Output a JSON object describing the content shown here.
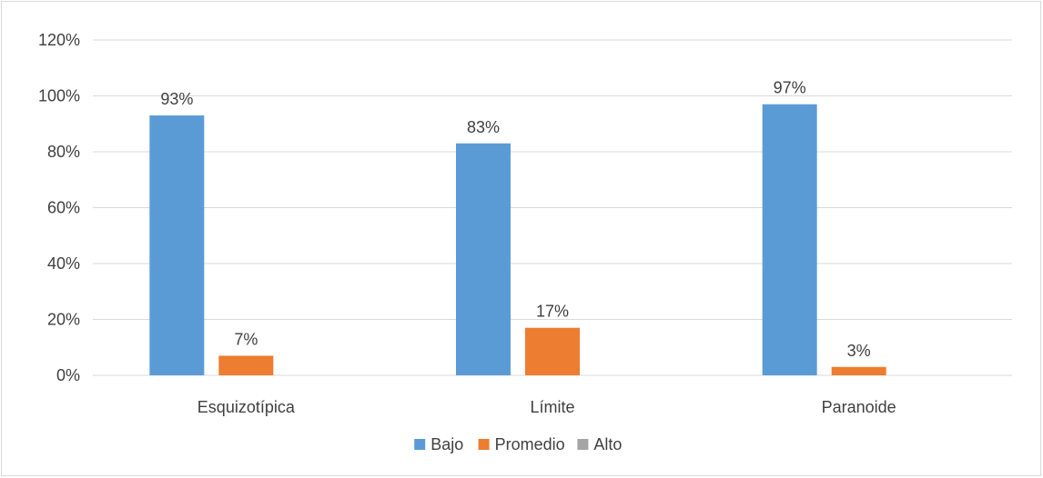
{
  "chart_data": {
    "type": "bar",
    "categories": [
      "Esquizotípica",
      "Límite",
      "Paranoide"
    ],
    "series": [
      {
        "name": "Bajo",
        "values": [
          93,
          83,
          97
        ],
        "labels": [
          "93%",
          "83%",
          "97%"
        ],
        "color": "#5b9bd5"
      },
      {
        "name": "Promedio",
        "values": [
          7,
          17,
          3
        ],
        "labels": [
          "7%",
          "17%",
          "3%"
        ],
        "color": "#ed7d31"
      },
      {
        "name": "Alto",
        "values": [
          0,
          0,
          0
        ],
        "labels": [
          "",
          "",
          ""
        ],
        "color": "#a5a5a5"
      }
    ],
    "ylim": [
      0,
      120
    ],
    "yticks": [
      0,
      20,
      40,
      60,
      80,
      100,
      120
    ],
    "ytick_labels": [
      "0%",
      "20%",
      "40%",
      "60%",
      "80%",
      "100%",
      "120%"
    ],
    "grid": true,
    "gridline_color": "#d9d9d9",
    "legend_position": "bottom"
  }
}
